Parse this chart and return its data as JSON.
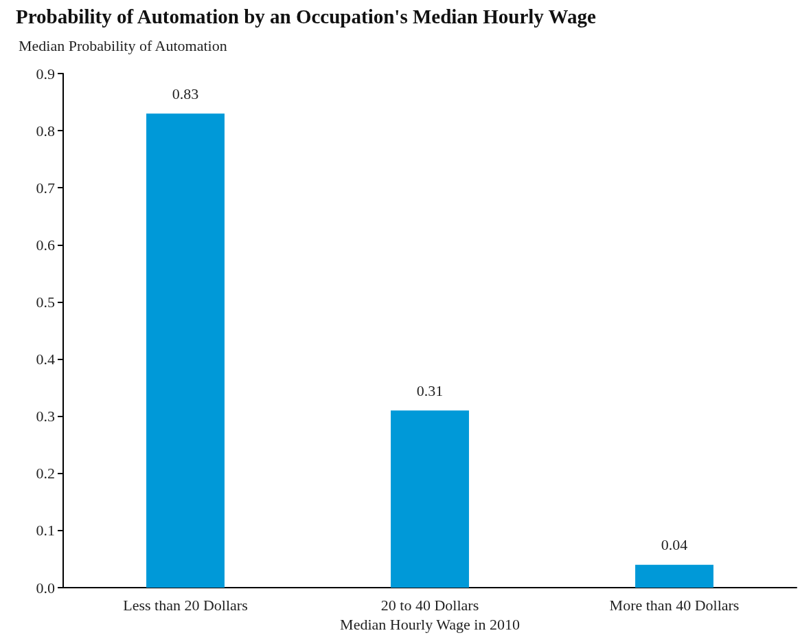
{
  "chart_data": {
    "type": "bar",
    "title": "Probability of Automation by an Occupation's Median Hourly Wage",
    "ylabel": "Median Probability of Automation",
    "xlabel": "Median Hourly Wage in 2010",
    "categories": [
      "Less than 20 Dollars",
      "20 to 40 Dollars",
      "More than 40 Dollars"
    ],
    "values": [
      0.83,
      0.31,
      0.04
    ],
    "color": "#0099d8",
    "ylim": [
      0,
      0.9
    ],
    "yticks": [
      {
        "value": 0,
        "label": "0.0"
      },
      0.1,
      0.2,
      0.3,
      0.4,
      0.5,
      0.6,
      0.7,
      0.8,
      0.9
    ],
    "data_labels": true,
    "grid": false
  }
}
